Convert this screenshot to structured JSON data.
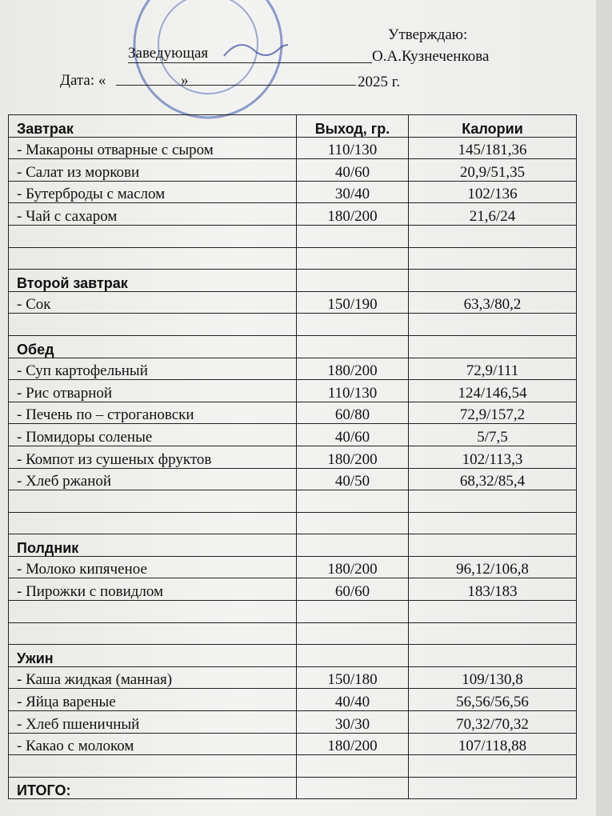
{
  "header": {
    "approve": "Утверждаю:",
    "position": "Заведующая",
    "name": "О.А.Кузнеченкова",
    "date_prefix": "Дата: «",
    "date_mid": "»",
    "date_year": "2025 г."
  },
  "table": {
    "header": [
      "Завтрак",
      "Выход, гр.",
      "Калории"
    ],
    "rows": [
      [
        "- Макароны отварные с сыром",
        "110/130",
        "145/181,36"
      ],
      [
        "- Салат из моркови",
        "40/60",
        "20,9/51,35"
      ],
      [
        "- Бутерброды с маслом",
        "30/40",
        "102/136"
      ],
      [
        "- Чай с  сахаром",
        "180/200",
        "21,6/24"
      ],
      [
        null,
        null,
        null
      ],
      [
        null,
        null,
        null
      ],
      [
        "Второй  завтрак",
        null,
        null
      ],
      [
        "- Сок",
        "150/190",
        "63,3/80,2"
      ],
      [
        null,
        null,
        null
      ],
      [
        "Обед",
        null,
        null
      ],
      [
        "- Суп картофельный",
        "180/200",
        "72,9/111"
      ],
      [
        "- Рис отварной",
        "110/130",
        "124/146,54"
      ],
      [
        "- Печень по – строгановски",
        "60/80",
        "72,9/157,2"
      ],
      [
        "- Помидоры соленые",
        "40/60",
        "5/7,5"
      ],
      [
        "- Компот  из сушеных фруктов",
        "180/200",
        "102/113,3"
      ],
      [
        "- Хлеб ржаной",
        "40/50",
        "68,32/85,4"
      ],
      [
        null,
        null,
        null
      ],
      [
        null,
        null,
        null
      ],
      [
        "Полдник",
        null,
        null
      ],
      [
        "- Молоко кипяченое",
        "180/200",
        "96,12/106,8"
      ],
      [
        "- Пирожки с повидлом",
        "60/60",
        "183/183"
      ],
      [
        null,
        null,
        null
      ],
      [
        null,
        null,
        null
      ],
      [
        "Ужин",
        null,
        null
      ],
      [
        "- Каша жидкая (манная)",
        "150/180",
        "109/130,8"
      ],
      [
        "- Яйца вареные",
        "40/40",
        "56,56/56,56"
      ],
      [
        "- Хлеб пшеничный",
        "30/30",
        "70,32/70,32"
      ],
      [
        "- Какао с молоком",
        "180/200",
        "107/118,88"
      ],
      [
        null,
        null,
        null
      ],
      [
        "ИТОГО:",
        null,
        null
      ]
    ]
  }
}
